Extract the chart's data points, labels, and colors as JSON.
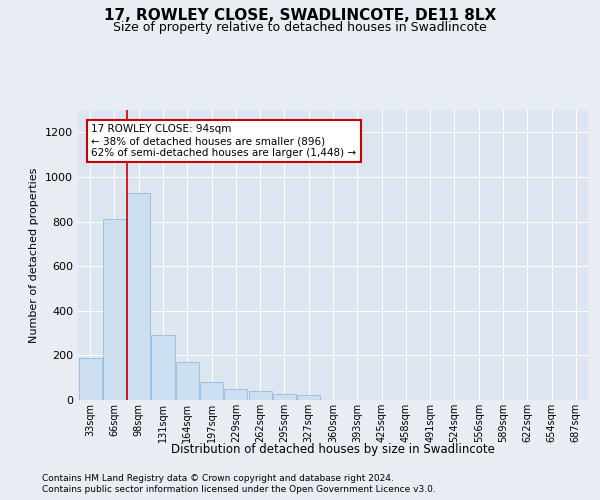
{
  "title": "17, ROWLEY CLOSE, SWADLINCOTE, DE11 8LX",
  "subtitle": "Size of property relative to detached houses in Swadlincote",
  "xlabel": "Distribution of detached houses by size in Swadlincote",
  "ylabel": "Number of detached properties",
  "bar_color": "#ccdff0",
  "bar_edge_color": "#8ab4d4",
  "property_line_color": "#cc0000",
  "annotation_text_line1": "17 ROWLEY CLOSE: 94sqm",
  "annotation_text_line2": "← 38% of detached houses are smaller (896)",
  "annotation_text_line3": "62% of semi-detached houses are larger (1,448) →",
  "footer_line1": "Contains HM Land Registry data © Crown copyright and database right 2024.",
  "footer_line2": "Contains public sector information licensed under the Open Government Licence v3.0.",
  "bins": [
    "33sqm",
    "66sqm",
    "98sqm",
    "131sqm",
    "164sqm",
    "197sqm",
    "229sqm",
    "262sqm",
    "295sqm",
    "327sqm",
    "360sqm",
    "393sqm",
    "425sqm",
    "458sqm",
    "491sqm",
    "524sqm",
    "556sqm",
    "589sqm",
    "622sqm",
    "654sqm",
    "687sqm"
  ],
  "counts": [
    190,
    810,
    930,
    290,
    170,
    80,
    50,
    42,
    28,
    22,
    0,
    0,
    0,
    0,
    0,
    0,
    0,
    0,
    0,
    0,
    0
  ],
  "property_line_x": 1.5,
  "ylim": [
    0,
    1300
  ],
  "yticks": [
    0,
    200,
    400,
    600,
    800,
    1000,
    1200
  ],
  "background_color": "#e8edf4",
  "plot_bg_color": "#dce5f0",
  "grid_color": "#ffffff"
}
